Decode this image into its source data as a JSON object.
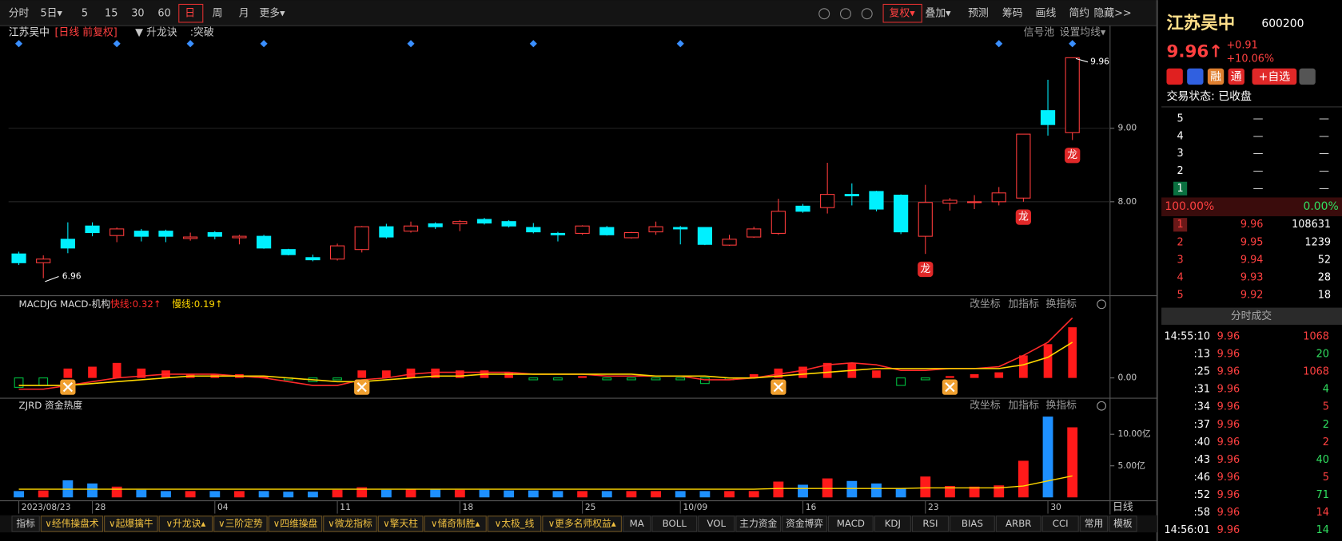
{
  "toolbar": {
    "periods": [
      "分时",
      "5日▾",
      "5",
      "15",
      "30",
      "60",
      "日",
      "周",
      "月",
      "更多▾"
    ],
    "tools": [
      "复权▾",
      "叠加▾",
      "预测",
      "筹码",
      "画线",
      "简约",
      "隐藏>>"
    ]
  },
  "header": {
    "name": "江苏吴中",
    "period": "[日线  前复权]",
    "indicator": "▼ 升龙诀",
    "signal": ":突破",
    "signal_pool": "信号池",
    "ma_setting": "设置均线▾"
  },
  "chart_data": [
    {
      "type": "candlestick",
      "categories": [
        "2023/08/23",
        null,
        null,
        "28",
        null,
        null,
        null,
        null,
        "04",
        null,
        null,
        null,
        null,
        "11",
        null,
        null,
        null,
        null,
        "18",
        null,
        null,
        null,
        null,
        "25",
        null,
        null,
        null,
        "10/09",
        null,
        null,
        null,
        null,
        "16",
        null,
        null,
        null,
        null,
        "23",
        null,
        null,
        null,
        null,
        "30",
        null
      ],
      "open": [
        7.29,
        7.17,
        7.49,
        7.67,
        7.54,
        7.6,
        7.6,
        7.5,
        7.58,
        7.51,
        7.53,
        7.35,
        7.24,
        7.22,
        7.35,
        7.66,
        7.6,
        7.7,
        7.7,
        7.76,
        7.73,
        7.65,
        7.57,
        7.57,
        7.65,
        7.51,
        7.59,
        7.65,
        7.65,
        7.41,
        7.52,
        7.57,
        7.94,
        7.92,
        8.1,
        8.14,
        8.09,
        7.53,
        7.98,
        8.0,
        8.0,
        8.05,
        9.24,
        8.94
      ],
      "close": [
        7.17,
        7.22,
        7.37,
        7.58,
        7.63,
        7.53,
        7.53,
        7.52,
        7.53,
        7.53,
        7.37,
        7.28,
        7.21,
        7.4,
        7.66,
        7.52,
        7.67,
        7.66,
        7.73,
        7.71,
        7.67,
        7.59,
        7.55,
        7.67,
        7.55,
        7.58,
        7.66,
        7.63,
        7.42,
        7.49,
        7.63,
        7.87,
        7.87,
        8.1,
        8.08,
        7.9,
        7.59,
        7.99,
        8.02,
        8.0,
        8.12,
        8.92,
        9.05,
        9.96
      ],
      "high": [
        7.32,
        7.27,
        7.72,
        7.72,
        7.65,
        7.63,
        7.62,
        7.58,
        7.6,
        7.55,
        7.55,
        7.36,
        7.28,
        7.43,
        7.67,
        7.7,
        7.73,
        7.72,
        7.75,
        7.78,
        7.75,
        7.71,
        7.59,
        7.68,
        7.67,
        7.59,
        7.73,
        7.67,
        7.65,
        7.55,
        7.66,
        8.04,
        7.97,
        8.53,
        8.25,
        8.15,
        8.1,
        8.23,
        8.05,
        8.09,
        8.2,
        8.92,
        9.66,
        9.96
      ],
      "low": [
        7.14,
        6.96,
        7.3,
        7.53,
        7.45,
        7.46,
        7.45,
        7.47,
        7.49,
        7.42,
        7.36,
        7.27,
        7.19,
        7.2,
        7.31,
        7.5,
        7.58,
        7.63,
        7.6,
        7.69,
        7.65,
        7.57,
        7.46,
        7.55,
        7.54,
        7.5,
        7.55,
        7.42,
        7.41,
        7.4,
        7.51,
        7.55,
        7.85,
        7.84,
        7.95,
        7.87,
        7.56,
        7.29,
        7.88,
        7.9,
        7.95,
        8.0,
        8.9,
        8.84
      ],
      "ylim": [
        6.733,
        10.256
      ],
      "yticks": [
        {
          "value": 9,
          "label": "9.00"
        },
        {
          "value": 8,
          "label": "8.00"
        }
      ],
      "max_label": "9.96",
      "min_label": "6.96",
      "up_color": "#ff3c3c",
      "down_color": "#00f0ff",
      "signals": [
        0,
        4,
        7,
        10,
        16,
        21,
        27,
        40,
        43
      ],
      "dragon_label": "龙",
      "dragons": [
        37,
        41,
        43
      ],
      "x_axis_end": "日线"
    },
    {
      "type": "macd",
      "title": "MACDJG MACD-机构",
      "values": [
        -0.05,
        -0.04,
        0.05,
        0.06,
        0.08,
        0.05,
        0.04,
        0.02,
        0.02,
        0.02,
        0.01,
        -0.01,
        -0.02,
        -0.01,
        0.04,
        0.04,
        0.05,
        0.05,
        0.04,
        0.04,
        0.03,
        -0.01,
        -0.01,
        0.01,
        -0.01,
        -0.01,
        -0.01,
        -0.01,
        -0.03,
        -0.01,
        0.02,
        0.05,
        0.06,
        0.08,
        0.08,
        0.04,
        -0.04,
        -0.01,
        0.01,
        0.02,
        0.03,
        0.12,
        0.18,
        0.27
      ],
      "series": [
        {
          "legend": "快线:0.32↑",
          "color": "#ff2a2a",
          "values": [
            -0.06,
            -0.06,
            -0.04,
            -0.02,
            0.0,
            0.01,
            0.02,
            0.02,
            0.02,
            0.01,
            0.0,
            -0.02,
            -0.04,
            -0.04,
            -0.01,
            0.0,
            0.02,
            0.03,
            0.03,
            0.03,
            0.03,
            0.02,
            0.02,
            0.02,
            0.01,
            0.01,
            0.01,
            0.01,
            -0.01,
            -0.01,
            0.0,
            0.02,
            0.04,
            0.07,
            0.08,
            0.07,
            0.04,
            0.04,
            0.05,
            0.05,
            0.06,
            0.12,
            0.19,
            0.32
          ]
        },
        {
          "legend": "慢线:0.19↑",
          "color": "#ffd700",
          "values": [
            -0.04,
            -0.04,
            -0.04,
            -0.03,
            -0.02,
            -0.01,
            0.0,
            0.01,
            0.01,
            0.01,
            0.01,
            0.0,
            -0.01,
            -0.02,
            -0.02,
            -0.01,
            0.0,
            0.01,
            0.01,
            0.02,
            0.02,
            0.02,
            0.02,
            0.02,
            0.02,
            0.02,
            0.01,
            0.01,
            0.01,
            0.0,
            0.0,
            0.01,
            0.02,
            0.03,
            0.04,
            0.05,
            0.05,
            0.05,
            0.05,
            0.05,
            0.05,
            0.07,
            0.11,
            0.19
          ]
        }
      ],
      "ylim": [
        -0.09,
        0.42
      ],
      "yticks": [
        {
          "value": 0,
          "label": "0.00"
        }
      ],
      "buttons": [
        "改坐标",
        "加指标",
        "换指标"
      ],
      "markers": [
        2,
        14,
        31,
        38
      ]
    },
    {
      "type": "heat",
      "title": "ZJRD 资金热度",
      "values": [
        1.0,
        1.1,
        2.7,
        2.2,
        1.7,
        1.2,
        1.0,
        1.0,
        1.0,
        1.0,
        1.0,
        0.9,
        0.9,
        1.2,
        1.6,
        1.2,
        1.3,
        1.3,
        1.2,
        1.2,
        1.1,
        1.1,
        1.0,
        1.0,
        1.0,
        1.0,
        1.0,
        1.0,
        1.0,
        1.0,
        1.0,
        2.5,
        2.0,
        3.0,
        2.6,
        2.2,
        1.4,
        3.3,
        1.8,
        1.7,
        1.9,
        5.8,
        12.8,
        11.1
      ],
      "line": [
        1.3,
        1.3,
        1.3,
        1.3,
        1.3,
        1.3,
        1.3,
        1.3,
        1.3,
        1.3,
        1.3,
        1.3,
        1.3,
        1.3,
        1.3,
        1.3,
        1.3,
        1.3,
        1.3,
        1.3,
        1.3,
        1.3,
        1.3,
        1.3,
        1.3,
        1.3,
        1.3,
        1.3,
        1.3,
        1.3,
        1.3,
        1.4,
        1.4,
        1.4,
        1.4,
        1.4,
        1.4,
        1.5,
        1.5,
        1.5,
        1.5,
        1.8,
        2.6,
        3.4
      ],
      "line_color": "#ffd700",
      "up_color": "#ff1a1a",
      "down_color": "#1e90ff",
      "ylim": [
        0,
        13
      ],
      "yticks": [
        {
          "value": 10,
          "label": "10.00亿"
        },
        {
          "value": 5,
          "label": "5.00亿"
        }
      ],
      "buttons": [
        "改坐标",
        "加指标",
        "换指标"
      ]
    }
  ],
  "tabs": [
    "指标",
    "∨经伟操盘术",
    "∨起爆擒牛",
    "∨升龙诀▴",
    "∨三阶定势",
    "∨四维操盘",
    "∨微龙指标",
    "∨擎天柱",
    "∨储奇制胜▴",
    "∨太极_线",
    "∨更多名师权益▴",
    "MA",
    "BOLL",
    "VOL",
    "主力资金",
    "资金博弈",
    "MACD",
    "KDJ",
    "RSI",
    "BIAS",
    "ARBR",
    "CCI",
    "常用",
    "模板"
  ],
  "quote": {
    "name": "江苏吴中",
    "code": "600200",
    "price": "9.96↑",
    "change": "+0.91",
    "pct": "+10.06%",
    "badges": [
      "融",
      "通",
      "+自选"
    ],
    "status": "交易状态: 已收盘",
    "asks": [
      [
        "5",
        "—",
        "—"
      ],
      [
        "4",
        "—",
        "—"
      ],
      [
        "3",
        "—",
        "—"
      ],
      [
        "2",
        "—",
        "—"
      ],
      [
        "1",
        "—",
        "—"
      ]
    ],
    "ratio_left": "100.00%",
    "ratio_right": "0.00%",
    "bids": [
      [
        "1",
        "9.96",
        "108631"
      ],
      [
        "2",
        "9.95",
        "1239"
      ],
      [
        "3",
        "9.94",
        "52"
      ],
      [
        "4",
        "9.93",
        "28"
      ],
      [
        "5",
        "9.92",
        "18"
      ]
    ],
    "trades_title": "分时成交",
    "trades": [
      [
        "14:55:10",
        "9.96",
        "1068"
      ],
      [
        ":13",
        "9.96",
        "20"
      ],
      [
        ":25",
        "9.96",
        "1068"
      ],
      [
        ":31",
        "9.96",
        "4"
      ],
      [
        ":34",
        "9.96",
        "5"
      ],
      [
        ":37",
        "9.96",
        "2"
      ],
      [
        ":40",
        "9.96",
        "2"
      ],
      [
        ":43",
        "9.96",
        "40"
      ],
      [
        ":46",
        "9.96",
        "5"
      ],
      [
        ":52",
        "9.96",
        "71"
      ],
      [
        ":58",
        "9.96",
        "14"
      ],
      [
        "14:56:01",
        "9.96",
        "14"
      ]
    ]
  }
}
